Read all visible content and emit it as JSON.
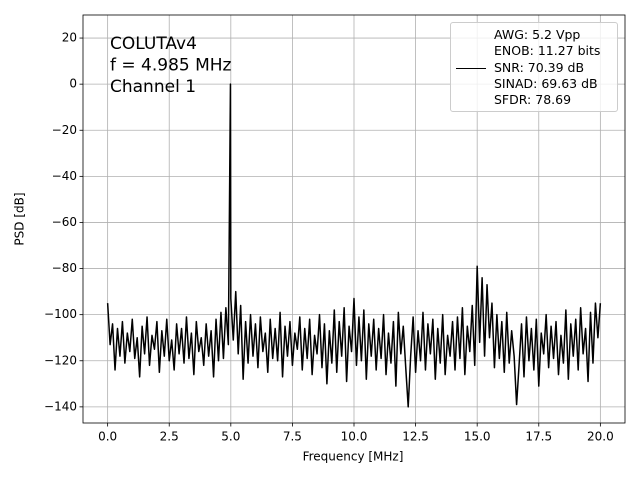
{
  "chart_data": {
    "type": "line",
    "annotations": [
      "COLUTAv4",
      "f = 4.985 MHz",
      "Channel 1"
    ],
    "xlabel": "Frequency [MHz]",
    "ylabel": "PSD [dB]",
    "x": [
      0.0,
      0.1,
      0.2,
      0.3,
      0.4,
      0.5,
      0.6,
      0.7,
      0.8,
      0.9,
      1.0,
      1.1,
      1.2,
      1.3,
      1.4,
      1.5,
      1.6,
      1.7,
      1.8,
      1.9,
      2.0,
      2.1,
      2.2,
      2.3,
      2.4,
      2.5,
      2.6,
      2.7,
      2.8,
      2.9,
      3.0,
      3.1,
      3.2,
      3.3,
      3.4,
      3.5,
      3.6,
      3.7,
      3.8,
      3.9,
      4.0,
      4.1,
      4.2,
      4.3,
      4.4,
      4.5,
      4.6,
      4.7,
      4.8,
      4.9,
      4.985,
      5.0,
      5.1,
      5.2,
      5.3,
      5.4,
      5.5,
      5.6,
      5.7,
      5.8,
      5.9,
      6.0,
      6.1,
      6.2,
      6.3,
      6.4,
      6.5,
      6.6,
      6.7,
      6.8,
      6.9,
      7.0,
      7.1,
      7.2,
      7.3,
      7.4,
      7.5,
      7.6,
      7.7,
      7.8,
      7.9,
      8.0,
      8.1,
      8.2,
      8.3,
      8.4,
      8.5,
      8.6,
      8.7,
      8.8,
      8.9,
      9.0,
      9.1,
      9.2,
      9.3,
      9.4,
      9.5,
      9.6,
      9.7,
      9.8,
      9.9,
      10.0,
      10.1,
      10.2,
      10.3,
      10.4,
      10.5,
      10.6,
      10.7,
      10.8,
      10.9,
      11.0,
      11.1,
      11.2,
      11.3,
      11.4,
      11.5,
      11.6,
      11.7,
      11.8,
      11.9,
      12.0,
      12.1,
      12.2,
      12.3,
      12.4,
      12.5,
      12.6,
      12.7,
      12.8,
      12.9,
      13.0,
      13.1,
      13.2,
      13.3,
      13.4,
      13.5,
      13.6,
      13.7,
      13.8,
      13.9,
      14.0,
      14.1,
      14.2,
      14.3,
      14.4,
      14.5,
      14.6,
      14.7,
      14.8,
      14.9,
      15.0,
      15.1,
      15.2,
      15.3,
      15.4,
      15.5,
      15.6,
      15.7,
      15.8,
      15.9,
      16.0,
      16.1,
      16.2,
      16.3,
      16.4,
      16.5,
      16.6,
      16.7,
      16.8,
      16.9,
      17.0,
      17.1,
      17.2,
      17.3,
      17.4,
      17.5,
      17.6,
      17.7,
      17.8,
      17.9,
      18.0,
      18.1,
      18.2,
      18.3,
      18.4,
      18.5,
      18.6,
      18.7,
      18.8,
      18.9,
      19.0,
      19.1,
      19.2,
      19.3,
      19.4,
      19.5,
      19.6,
      19.7,
      19.8,
      19.9,
      20.0
    ],
    "series": [
      {
        "name": "AWG: 5.2 Vpp\nENOB: 11.27 bits\nSNR: 70.39 dB\nSINAD: 69.63 dB\nSFDR: 78.69",
        "color": "#000000",
        "values": [
          -95,
          -113,
          -104,
          -124,
          -106,
          -118,
          -103,
          -121,
          -108,
          -116,
          -102,
          -119,
          -110,
          -127,
          -105,
          -117,
          -101,
          -122,
          -109,
          -115,
          -103,
          -125,
          -107,
          -118,
          -102,
          -120,
          -111,
          -124,
          -104,
          -117,
          -106,
          -121,
          -101,
          -119,
          -108,
          -126,
          -103,
          -116,
          -110,
          -122,
          -104,
          -118,
          -107,
          -127,
          -102,
          -120,
          -99,
          -119,
          -97,
          -113,
          0,
          -93,
          -111,
          -90,
          -117,
          -96,
          -128,
          -103,
          -121,
          -100,
          -118,
          -104,
          -123,
          -101,
          -116,
          -108,
          -125,
          -102,
          -119,
          -106,
          -120,
          -99,
          -127,
          -105,
          -118,
          -103,
          -122,
          -108,
          -115,
          -101,
          -124,
          -106,
          -119,
          -102,
          -126,
          -109,
          -117,
          -100,
          -123,
          -104,
          -130,
          -107,
          -121,
          -98,
          -125,
          -103,
          -118,
          -97,
          -129,
          -105,
          -116,
          -93,
          -122,
          -101,
          -120,
          -98,
          -128,
          -104,
          -118,
          -102,
          -124,
          -106,
          -119,
          -100,
          -126,
          -108,
          -121,
          -103,
          -131,
          -99,
          -117,
          -105,
          -123,
          -140,
          -118,
          -101,
          -125,
          -107,
          -120,
          -99,
          -124,
          -104,
          -117,
          -102,
          -128,
          -106,
          -121,
          -100,
          -126,
          -109,
          -118,
          -103,
          -124,
          -101,
          -119,
          -97,
          -126,
          -105,
          -116,
          -96,
          -122,
          -79,
          -112,
          -84,
          -118,
          -87,
          -110,
          -95,
          -123,
          -100,
          -119,
          -103,
          -125,
          -99,
          -121,
          -107,
          -118,
          -139,
          -122,
          -104,
          -127,
          -101,
          -120,
          -106,
          -124,
          -102,
          -131,
          -108,
          -117,
          -100,
          -123,
          -105,
          -119,
          -103,
          -126,
          -109,
          -121,
          -98,
          -128,
          -104,
          -118,
          -102,
          -124,
          -97,
          -117,
          -106,
          -129,
          -99,
          -121,
          -95,
          -110,
          -95
        ]
      }
    ],
    "xlim": [
      -1,
      21
    ],
    "ylim": [
      -147,
      30
    ],
    "xticks": [
      {
        "value": 0,
        "label": "0.0"
      },
      2.5,
      {
        "value": 5,
        "label": "5.0"
      },
      7.5,
      {
        "value": 10,
        "label": "10.0"
      },
      12.5,
      {
        "value": 15,
        "label": "15.0"
      },
      17.5,
      {
        "value": 20,
        "label": "20.0"
      }
    ],
    "yticks": [
      {
        "value": -140,
        "label": "−140"
      },
      {
        "value": -120,
        "label": "−120"
      },
      {
        "value": -100,
        "label": "−100"
      },
      {
        "value": -80,
        "label": "−80"
      },
      {
        "value": -60,
        "label": "−60"
      },
      {
        "value": -40,
        "label": "−40"
      },
      {
        "value": -20,
        "label": "−20"
      },
      0,
      20
    ],
    "grid": true,
    "legend": "upper right"
  }
}
